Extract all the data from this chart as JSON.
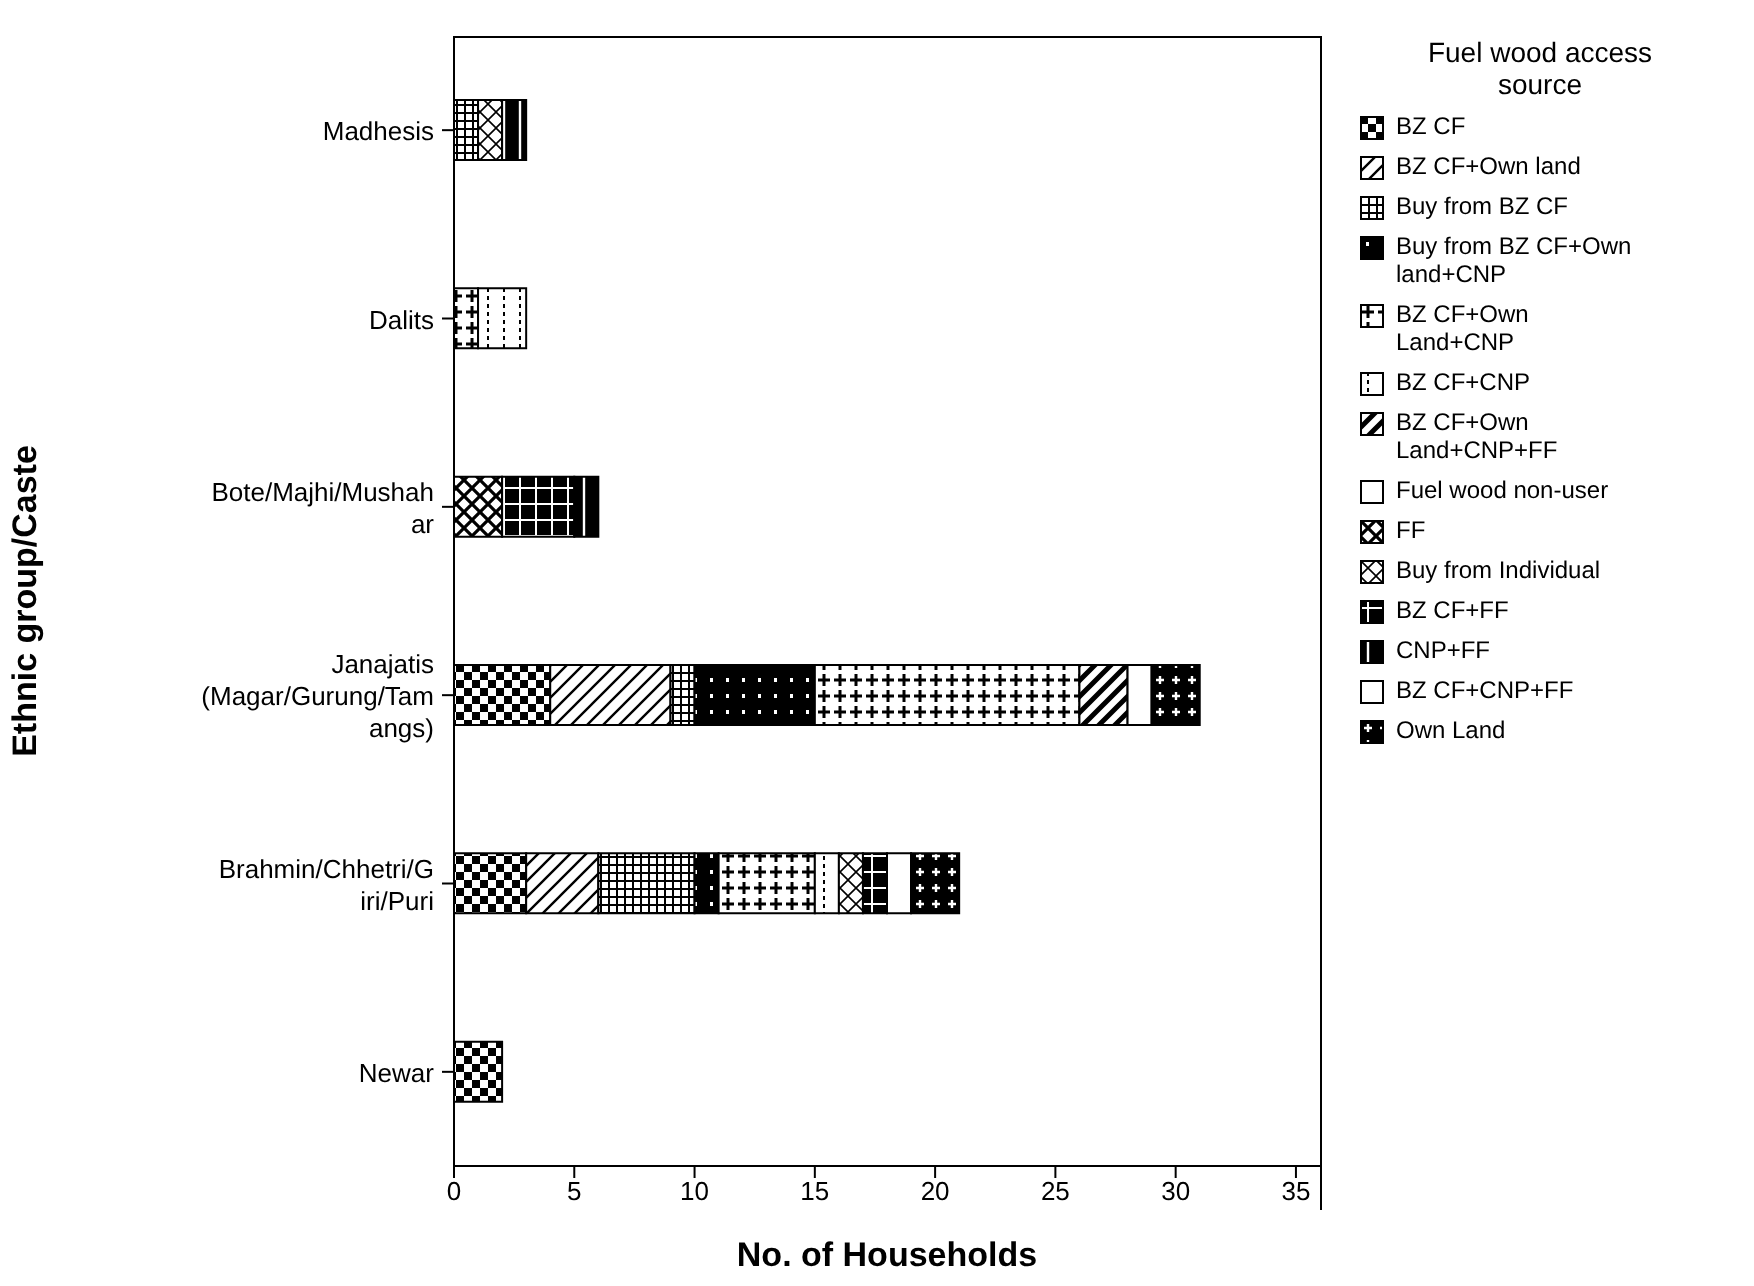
{
  "chart_data": {
    "type": "bar",
    "orientation": "horizontal",
    "stacked": true,
    "xlabel": "No. of Households",
    "ylabel": "Ethnic group/Caste",
    "legend_title": "Fuel wood access source",
    "legend": "right",
    "grid": false,
    "categories": [
      "Madhesis",
      "Dalits",
      "Bote/Majhi/Mushahar",
      "Janajatis (Magar/Gurung/Tamangs)",
      "Brahmin/Chhetri/Giri/Puri",
      "Newar"
    ],
    "xlim": [
      0,
      36
    ],
    "xticks": [
      0,
      5,
      10,
      15,
      20,
      25,
      30,
      35
    ],
    "series": [
      {
        "name": "BZ CF",
        "color": "#000000",
        "values": [
          null,
          null,
          null,
          4,
          3,
          2
        ]
      },
      {
        "name": "BZ CF+Own land",
        "color": "#000000",
        "values": [
          null,
          null,
          null,
          5,
          3,
          null
        ]
      },
      {
        "name": "Buy from BZ CF",
        "color": "#000000",
        "values": [
          1,
          null,
          null,
          1,
          4,
          null
        ]
      },
      {
        "name": "Buy from BZ CF+Own land+CNP",
        "color": "#000000",
        "values": [
          null,
          null,
          null,
          5,
          1,
          null
        ]
      },
      {
        "name": "BZ CF+Own Land+CNP",
        "color": "#000000",
        "values": [
          null,
          1,
          null,
          11,
          4,
          null
        ]
      },
      {
        "name": "BZ CF+CNP",
        "color": "#000000",
        "values": [
          null,
          2,
          null,
          null,
          1,
          null
        ]
      },
      {
        "name": "BZ CF+Own Land+CNP+FF",
        "color": "#000000",
        "values": [
          null,
          null,
          null,
          2,
          null,
          null
        ]
      },
      {
        "name": "Fuel wood non-user",
        "color": "#ffffff",
        "values": [
          null,
          null,
          null,
          1,
          null,
          null
        ]
      },
      {
        "name": "FF",
        "color": "#000000",
        "values": [
          null,
          null,
          2,
          null,
          null,
          null
        ]
      },
      {
        "name": "Buy from Individual",
        "color": "#000000",
        "values": [
          1,
          null,
          null,
          null,
          1,
          null
        ]
      },
      {
        "name": "BZ CF+FF",
        "color": "#000000",
        "values": [
          null,
          null,
          3,
          null,
          1,
          null
        ]
      },
      {
        "name": "CNP+FF",
        "color": "#000000",
        "values": [
          1,
          null,
          1,
          null,
          null,
          null
        ]
      },
      {
        "name": "BZ CF+CNP+FF",
        "color": "#ffffff",
        "values": [
          null,
          null,
          null,
          null,
          1,
          null
        ]
      },
      {
        "name": "Own Land",
        "color": "#000000",
        "values": [
          null,
          null,
          null,
          2,
          2,
          null
        ]
      }
    ]
  }
}
